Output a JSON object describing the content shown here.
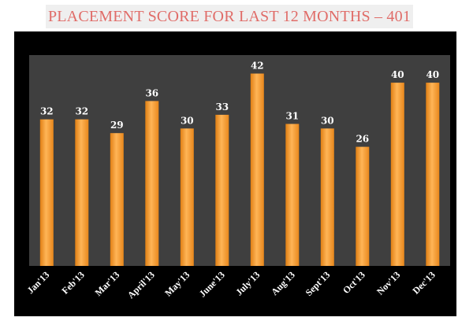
{
  "chart_data": {
    "type": "bar",
    "title": "PLACEMENT SCORE FOR LAST 12 MONTHS – 401",
    "xlabel": "",
    "ylabel": "",
    "categories": [
      "Jan'13",
      "Feb'13",
      "Mar'13",
      "April'13",
      "May'13",
      "June'13",
      "July'13",
      "Aug'13",
      "Sept'13",
      "Oct'13",
      "Nov'13",
      "Dec'13"
    ],
    "values": [
      32,
      32,
      29,
      36,
      30,
      33,
      42,
      31,
      30,
      26,
      40,
      40
    ],
    "ylim": [
      0,
      45
    ],
    "grid": false,
    "legend": "none",
    "data_labels": true,
    "colors": {
      "bar": "#f39a2b",
      "bar_highlight": "#ffb557",
      "plot_background": "#3f3f3f",
      "frame_background": "#000000",
      "title": "#e06c68",
      "label": "#ffffff"
    }
  }
}
